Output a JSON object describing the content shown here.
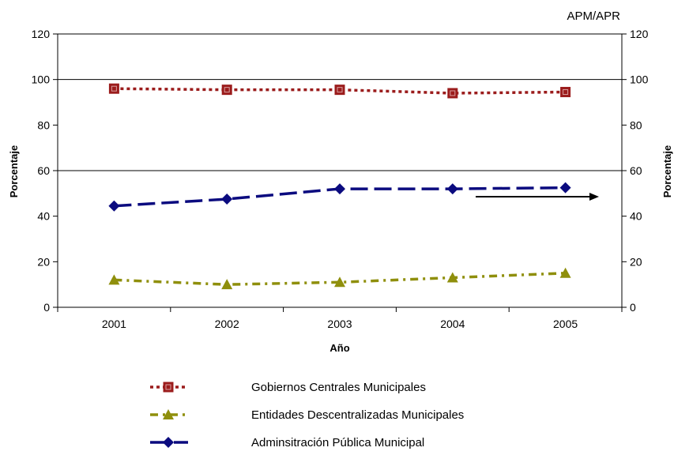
{
  "chart_data": {
    "type": "line",
    "title": "",
    "corner_label": "APM/APR",
    "xlabel": "Año",
    "ylabel": "Porcentaje",
    "ylabel_right": "Porcentaje",
    "categories": [
      "2001",
      "2002",
      "2003",
      "2004",
      "2005"
    ],
    "ylim": [
      0,
      120
    ],
    "yticks": [
      "0",
      "20",
      "40",
      "60",
      "80",
      "100",
      "120"
    ],
    "y_right_ticks": [
      "0",
      "20",
      "40",
      "60",
      "80",
      "100",
      "120"
    ],
    "grid": "horizontal gridlines at 60, 100 and 120",
    "legend_position": "bottom",
    "series": [
      {
        "name": "Gobiernos Centrales Municipales",
        "values": [
          96,
          95.5,
          95.5,
          94,
          94.5
        ],
        "color": "#9b1c1c",
        "marker": "square",
        "dash": "dotted"
      },
      {
        "name": "Entidades Descentralizadas Municipales",
        "values": [
          12,
          10,
          11,
          13,
          15
        ],
        "color": "#8f8f0c",
        "marker": "triangle",
        "dash": "dash-dot"
      },
      {
        "name": " Adminsitración Pública Municipal",
        "values": [
          44.5,
          47.5,
          52,
          52,
          52.5
        ],
        "color": "#0b0b7f",
        "marker": "diamond",
        "dash": "long-dash"
      }
    ],
    "annotation": "arrow pointing right toward the right axis"
  }
}
